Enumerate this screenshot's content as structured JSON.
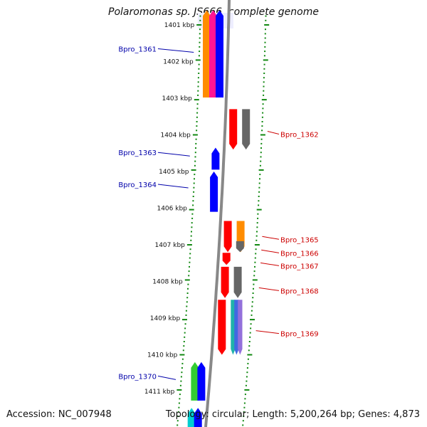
{
  "title": "Polaromonas sp. JS666, complete genome",
  "footer": {
    "accession": "Accession: NC_007948",
    "summary": "Topology: circular; Length: 5,200,264 bp; Genes: 4,873"
  },
  "colors": {
    "axis": "#888888",
    "tick": "#118811",
    "left_label": "#0000aa",
    "right_label": "#cc0000"
  },
  "scale": [
    {
      "kbp": 1401,
      "label": "1401 kbp"
    },
    {
      "kbp": 1402,
      "label": "1402 kbp"
    },
    {
      "kbp": 1403,
      "label": "1403 kbp"
    },
    {
      "kbp": 1404,
      "label": "1404 kbp"
    },
    {
      "kbp": 1405,
      "label": "1405 kbp"
    },
    {
      "kbp": 1406,
      "label": "1406 kbp"
    },
    {
      "kbp": 1407,
      "label": "1407 kbp"
    },
    {
      "kbp": 1408,
      "label": "1408 kbp"
    },
    {
      "kbp": 1409,
      "label": "1409 kbp"
    },
    {
      "kbp": 1410,
      "label": "1410 kbp"
    },
    {
      "kbp": 1411,
      "label": "1411 kbp"
    }
  ],
  "genes": [
    {
      "name": "Bpro_1361",
      "side": "left",
      "label_kbp": 1401.65,
      "start": 1400.6,
      "end": 1402.98,
      "dir": "up",
      "tracks": [
        [
          "#ff8c00",
          "#ff1493",
          "#0000ff"
        ]
      ]
    },
    {
      "name": "Bpro_1362",
      "side": "right",
      "label_kbp": 1403.98,
      "start": 1403.3,
      "end": 1404.4,
      "dir": "down",
      "tracks": [
        [
          "#ff0000"
        ],
        [
          "#666666"
        ]
      ]
    },
    {
      "name": "Bpro_1363",
      "side": "left",
      "label_kbp": 1404.48,
      "start": 1404.35,
      "end": 1404.95,
      "dir": "up",
      "tracks": [
        [
          "#0000ff"
        ]
      ]
    },
    {
      "name": "Bpro_1364",
      "side": "left",
      "label_kbp": 1405.35,
      "start": 1405.0,
      "end": 1406.1,
      "dir": "up",
      "tracks": [
        [
          "#0000ff"
        ]
      ]
    },
    {
      "name": "Bpro_1365",
      "side": "right",
      "label_kbp": 1406.85,
      "start": 1406.35,
      "end": 1407.2,
      "dir": "down",
      "tracks": [
        [
          "#ff0000"
        ],
        [
          "#ff8c00"
        ]
      ]
    },
    {
      "name": "Bpro_1366",
      "side": "right",
      "label_kbp": 1407.22,
      "start": 1406.9,
      "end": 1407.2,
      "dir": "down",
      "tracks": [
        [],
        [
          "#666666"
        ]
      ]
    },
    {
      "name": "Bpro_1367",
      "side": "right",
      "label_kbp": 1407.57,
      "start": 1407.22,
      "end": 1407.55,
      "dir": "down",
      "tracks": [
        [
          "#ff0000"
        ]
      ]
    },
    {
      "name": "Bpro_1368",
      "side": "right",
      "label_kbp": 1408.25,
      "start": 1407.6,
      "end": 1408.45,
      "dir": "down",
      "tracks": [
        [
          "#ff0000"
        ],
        [
          "#666666"
        ]
      ]
    },
    {
      "name": "Bpro_1369",
      "side": "right",
      "label_kbp": 1409.42,
      "start": 1408.5,
      "end": 1410.0,
      "dir": "down",
      "tracks": [
        [
          "#ff0000"
        ],
        [
          "#20b2aa",
          "#4169e1",
          "#9370db"
        ]
      ]
    },
    {
      "name": "Bpro_1370",
      "side": "left",
      "label_kbp": 1410.58,
      "start": 1410.2,
      "end": 1411.25,
      "dir": "up",
      "tracks": [
        [
          "#32cd32",
          "#0000ff"
        ]
      ]
    },
    {
      "name": "",
      "side": "left",
      "label_kbp": 1411.9,
      "start": 1411.45,
      "end": 1412.2,
      "dir": "up",
      "tracks": [
        [
          "#00ced1",
          "#0000ff"
        ]
      ]
    }
  ]
}
